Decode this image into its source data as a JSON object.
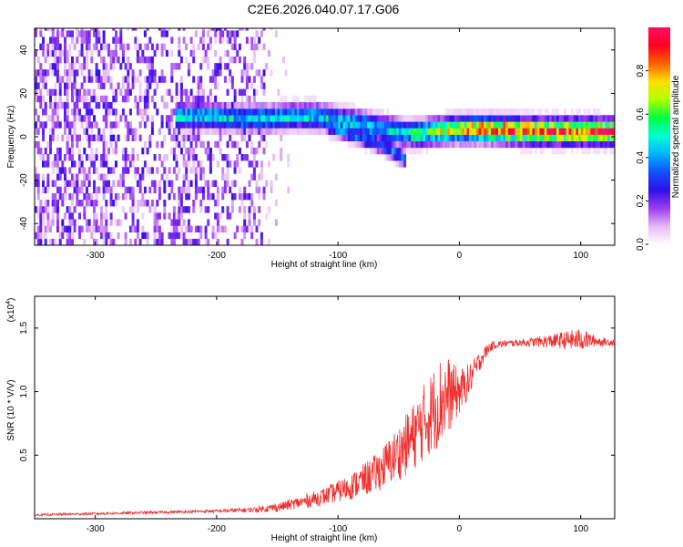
{
  "title": "C2E6.2026.040.07.17.G06",
  "chart_data": [
    {
      "type": "heatmap",
      "panel": "spectrogram",
      "xlabel": "Height of straight line (km)",
      "ylabel": "Frequency (Hz)",
      "xlim": [
        -350,
        128
      ],
      "ylim": [
        -50,
        50
      ],
      "xticks": [
        -300,
        -200,
        -100,
        0,
        100
      ],
      "yticks": [
        -40,
        -20,
        0,
        20,
        40
      ],
      "colorbar": {
        "label": "Normalized spectral amplitude",
        "range": [
          0,
          1
        ],
        "ticks": [
          0.0,
          0.2,
          0.4,
          0.6,
          0.8
        ],
        "colormap": [
          "#ffffff",
          "#e6b8f5",
          "#9a3cf0",
          "#3010e8",
          "#1050ff",
          "#00b4ff",
          "#00ffd0",
          "#00ff40",
          "#b0ff00",
          "#ffe000",
          "#ff6000",
          "#ff0020",
          "#ff1060"
        ]
      },
      "features": [
        {
          "name": "signal-track",
          "points": [
            [
              -230,
              8
            ],
            [
              -210,
              8
            ],
            [
              -180,
              7
            ],
            [
              -160,
              7
            ],
            [
              -140,
              8
            ],
            [
              -120,
              8
            ],
            [
              -100,
              6
            ],
            [
              -80,
              4
            ],
            [
              -60,
              2
            ],
            [
              -45,
              0
            ],
            [
              -35,
              0
            ],
            [
              -20,
              1
            ],
            [
              0,
              2
            ],
            [
              20,
              2
            ],
            [
              60,
              1
            ],
            [
              100,
              1
            ],
            [
              128,
              1
            ]
          ]
        },
        {
          "name": "lower-branch",
          "points": [
            [
              -110,
              4
            ],
            [
              -90,
              0
            ],
            [
              -70,
              -4
            ],
            [
              -55,
              -8
            ],
            [
              -45,
              -12
            ]
          ]
        },
        {
          "name": "steep-streak",
          "points": [
            [
              -236,
              -48
            ],
            [
              -230,
              -30
            ],
            [
              -224,
              -10
            ],
            [
              -218,
              5
            ],
            [
              -214,
              15
            ]
          ]
        }
      ]
    },
    {
      "type": "line",
      "panel": "snr",
      "xlabel": "Height of straight line (km)",
      "ylabel": "SNR (10 * V/V)",
      "scale_label": "(x10",
      "scale_exponent": "4",
      "xlim": [
        -350,
        128
      ],
      "ylim": [
        0,
        17500
      ],
      "xticks": [
        -300,
        -200,
        -100,
        0,
        100
      ],
      "yticks": [
        5000,
        10000,
        15000
      ],
      "ytick_labels": [
        "0.5",
        "1.0",
        "1.5"
      ],
      "color": "#ee3030",
      "series": [
        {
          "name": "SNR",
          "x": [
            -350,
            -300,
            -250,
            -200,
            -170,
            -150,
            -130,
            -110,
            -90,
            -70,
            -60,
            -50,
            -40,
            -30,
            -20,
            -15,
            -10,
            -5,
            0,
            5,
            10,
            15,
            20,
            25,
            30,
            40,
            60,
            80,
            100,
            110,
            120,
            128
          ],
          "y": [
            300,
            400,
            500,
            600,
            700,
            900,
            1300,
            1800,
            2500,
            3500,
            4300,
            5200,
            6200,
            7500,
            8700,
            9300,
            9700,
            9800,
            10000,
            10500,
            11200,
            12100,
            12900,
            13500,
            13700,
            13800,
            13900,
            14000,
            14100,
            14000,
            13900,
            13900
          ],
          "noise_amplitude": [
            80,
            100,
            100,
            130,
            200,
            350,
            500,
            700,
            1000,
            1500,
            1800,
            2200,
            2600,
            3000,
            3400,
            3600,
            3200,
            2400,
            1800,
            1500,
            1200,
            900,
            600,
            400,
            300,
            250,
            350,
            600,
            900,
            500,
            300,
            300
          ]
        }
      ]
    }
  ]
}
